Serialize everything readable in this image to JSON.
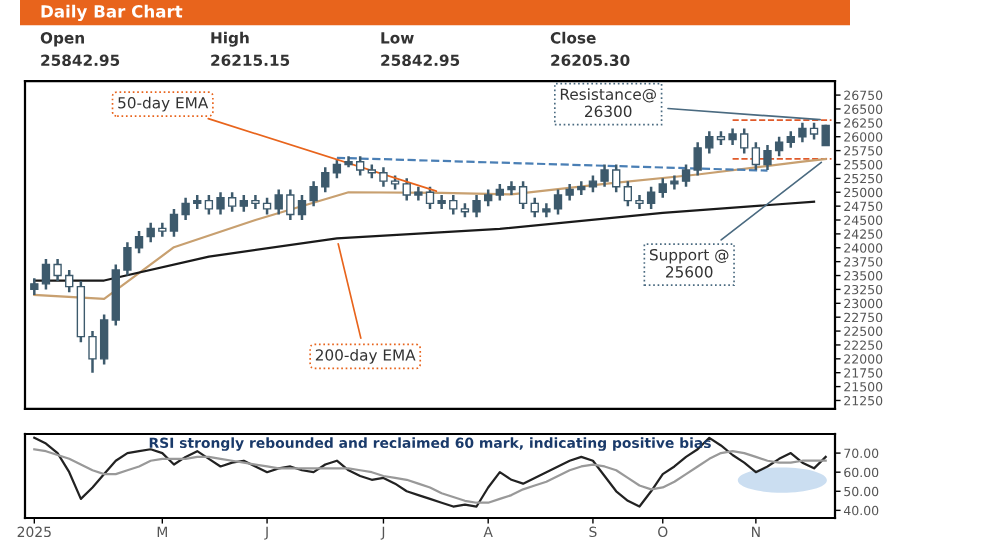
{
  "chart_data": [
    {
      "type": "candlestick",
      "title": "Daily Bar Chart",
      "categories": [
        null,
        null,
        null,
        null,
        null,
        null,
        null,
        null,
        null,
        null,
        null,
        null,
        null,
        null,
        null,
        null,
        null,
        null,
        null,
        null,
        null,
        null,
        null,
        null,
        null,
        null,
        null,
        null,
        null,
        null,
        null,
        null,
        null,
        null,
        null,
        null,
        null,
        null,
        null,
        null,
        null,
        null,
        null,
        null,
        null,
        null,
        null,
        null,
        null,
        null,
        null,
        null,
        null,
        null,
        null,
        null,
        null,
        null,
        null,
        null,
        null,
        null,
        null,
        null,
        null,
        null,
        null,
        null,
        null
      ],
      "color": "#3d5a6c",
      "ohlc": [
        [
          23250,
          23450,
          23150,
          23350
        ],
        [
          23350,
          23800,
          23250,
          23700
        ],
        [
          23700,
          23800,
          23400,
          23500
        ],
        [
          23500,
          23600,
          23200,
          23300
        ],
        [
          23300,
          23400,
          22300,
          22400
        ],
        [
          22400,
          22500,
          21750,
          22000
        ],
        [
          22000,
          22800,
          21900,
          22700
        ],
        [
          22700,
          23700,
          22600,
          23600
        ],
        [
          23600,
          24100,
          23500,
          24000
        ],
        [
          24000,
          24300,
          23900,
          24200
        ],
        [
          24200,
          24450,
          24100,
          24350
        ],
        [
          24350,
          24450,
          24200,
          24300
        ],
        [
          24300,
          24700,
          24200,
          24600
        ],
        [
          24600,
          24900,
          24500,
          24800
        ],
        [
          24800,
          24950,
          24700,
          24850
        ],
        [
          24850,
          24950,
          24600,
          24700
        ],
        [
          24700,
          25000,
          24600,
          24900
        ],
        [
          24900,
          25000,
          24650,
          24750
        ],
        [
          24750,
          24950,
          24650,
          24850
        ],
        [
          24850,
          24950,
          24700,
          24800
        ],
        [
          24800,
          24900,
          24600,
          24700
        ],
        [
          24700,
          25050,
          24600,
          24950
        ],
        [
          24950,
          25050,
          24500,
          24600
        ],
        [
          24600,
          24950,
          24500,
          24850
        ],
        [
          24850,
          25200,
          24750,
          25100
        ],
        [
          25100,
          25450,
          25000,
          25350
        ],
        [
          25350,
          25600,
          25250,
          25500
        ],
        [
          25500,
          25650,
          25450,
          25550
        ],
        [
          25550,
          25650,
          25300,
          25400
        ],
        [
          25400,
          25500,
          25250,
          25350
        ],
        [
          25350,
          25450,
          25100,
          25200
        ],
        [
          25200,
          25300,
          25050,
          25150
        ],
        [
          25150,
          25250,
          24850,
          24950
        ],
        [
          24950,
          25100,
          24850,
          25000
        ],
        [
          25000,
          25100,
          24700,
          24800
        ],
        [
          24800,
          24950,
          24700,
          24850
        ],
        [
          24850,
          24950,
          24600,
          24700
        ],
        [
          24700,
          24800,
          24550,
          24650
        ],
        [
          24650,
          24950,
          24550,
          24850
        ],
        [
          24850,
          25050,
          24750,
          24950
        ],
        [
          24950,
          25150,
          24850,
          25050
        ],
        [
          25050,
          25200,
          24950,
          25100
        ],
        [
          25100,
          25200,
          24700,
          24800
        ],
        [
          24800,
          24900,
          24550,
          24650
        ],
        [
          24650,
          24800,
          24550,
          24700
        ],
        [
          24700,
          25050,
          24600,
          24950
        ],
        [
          24950,
          25150,
          24850,
          25050
        ],
        [
          25050,
          25200,
          24950,
          25100
        ],
        [
          25100,
          25300,
          25000,
          25200
        ],
        [
          25200,
          25500,
          25100,
          25400
        ],
        [
          25400,
          25500,
          25000,
          25100
        ],
        [
          25100,
          25200,
          24750,
          24850
        ],
        [
          24850,
          24950,
          24700,
          24800
        ],
        [
          24800,
          25100,
          24700,
          25000
        ],
        [
          25000,
          25250,
          24900,
          25150
        ],
        [
          25150,
          25300,
          25050,
          25200
        ],
        [
          25200,
          25500,
          25100,
          25400
        ],
        [
          25400,
          25900,
          25300,
          25800
        ],
        [
          25800,
          26100,
          25700,
          26000
        ],
        [
          26000,
          26100,
          25850,
          25950
        ],
        [
          25950,
          26150,
          25850,
          26050
        ],
        [
          26050,
          26150,
          25700,
          25800
        ],
        [
          25800,
          25900,
          25400,
          25500
        ],
        [
          25500,
          25850,
          25400,
          25750
        ],
        [
          25750,
          26000,
          25650,
          25900
        ],
        [
          25900,
          26100,
          25800,
          26000
        ],
        [
          26000,
          26250,
          25900,
          26150
        ],
        [
          26150,
          26250,
          25950,
          26050
        ],
        [
          25842.95,
          26215.15,
          25842.95,
          26205.3
        ]
      ],
      "series": [
        {
          "name": "50-day EMA",
          "type": "line",
          "color": "#c8a070",
          "values": [
            23150,
            null,
            null,
            null,
            null,
            null,
            23080,
            null,
            null,
            null,
            null,
            null,
            24010,
            null,
            null,
            null,
            null,
            null,
            null,
            24500,
            null,
            null,
            null,
            null,
            null,
            null,
            null,
            25000,
            null,
            null,
            null,
            null,
            null,
            null,
            null,
            24990,
            null,
            null,
            null,
            null,
            null,
            24960,
            null,
            null,
            null,
            null,
            null,
            null,
            null,
            25150,
            null,
            null,
            null,
            null,
            null,
            null,
            null,
            25320,
            null,
            null,
            null,
            null,
            null,
            null,
            null,
            null,
            25550,
            null,
            25600
          ]
        },
        {
          "name": "200-day EMA",
          "type": "line",
          "color": "#1a1a1a",
          "values": [
            23410,
            null,
            null,
            null,
            null,
            null,
            23410,
            null,
            null,
            null,
            null,
            null,
            null,
            null,
            null,
            23840,
            null,
            null,
            null,
            null,
            null,
            null,
            null,
            null,
            null,
            null,
            24170,
            null,
            null,
            null,
            null,
            null,
            null,
            null,
            null,
            null,
            null,
            null,
            null,
            null,
            24340,
            null,
            null,
            null,
            null,
            null,
            null,
            null,
            null,
            null,
            null,
            null,
            null,
            null,
            24630,
            null,
            null,
            null,
            null,
            null,
            null,
            null,
            null,
            null,
            null,
            null,
            null,
            24830,
            null
          ]
        },
        {
          "type": "line",
          "color": "#4a7fb5",
          "line_style": "dashed",
          "values": [
            null,
            null,
            null,
            null,
            null,
            null,
            null,
            null,
            null,
            null,
            null,
            null,
            null,
            null,
            null,
            null,
            null,
            null,
            null,
            null,
            null,
            null,
            null,
            null,
            null,
            null,
            25620,
            null,
            null,
            null,
            null,
            null,
            null,
            null,
            null,
            null,
            null,
            null,
            null,
            null,
            null,
            null,
            null,
            null,
            null,
            null,
            null,
            null,
            null,
            null,
            null,
            null,
            null,
            null,
            null,
            null,
            null,
            null,
            null,
            null,
            null,
            null,
            null,
            25390,
            null,
            null,
            null,
            null,
            null
          ]
        }
      ],
      "ref_lines": [
        {
          "axis": "y",
          "value": 26300,
          "label": "Resistance@\n26300",
          "color": "#e05a2a",
          "line_style": "dashed"
        },
        {
          "axis": "y",
          "value": 25600,
          "label": "Support @\n25600",
          "color": "#e05a2a",
          "line_style": "dashed"
        }
      ],
      "annotations": [
        "Open",
        "High",
        "Low",
        "Close",
        "25842.95",
        "26215.15",
        "25842.95",
        "26205.30"
      ],
      "ylim": [
        21100,
        27000
      ],
      "yticks": [
        21250,
        21500,
        21750,
        22000,
        22250,
        22500,
        22750,
        23000,
        23250,
        23500,
        23750,
        24000,
        24250,
        24500,
        24750,
        25000,
        25250,
        25500,
        25750,
        26000,
        26250,
        26500,
        26750
      ],
      "tick_labels": "y",
      "grid": false,
      "legend": false
    },
    {
      "type": "line",
      "categories": [
        "2025",
        null,
        null,
        null,
        null,
        null,
        null,
        null,
        null,
        null,
        null,
        "M",
        null,
        null,
        null,
        null,
        null,
        null,
        null,
        null,
        "J",
        null,
        null,
        null,
        null,
        null,
        null,
        null,
        null,
        null,
        "J",
        null,
        null,
        null,
        null,
        null,
        null,
        null,
        null,
        "A",
        null,
        null,
        null,
        null,
        null,
        null,
        null,
        null,
        "S",
        null,
        null,
        null,
        null,
        null,
        "O",
        null,
        null,
        null,
        null,
        null,
        null,
        null,
        "N",
        null,
        null,
        null,
        null,
        null,
        null
      ],
      "series": [
        {
          "color": "#222222",
          "values": [
            78,
            75,
            70,
            60,
            46,
            52,
            59,
            66,
            70,
            71,
            72,
            70,
            64,
            68,
            71,
            67,
            63,
            65,
            66,
            63,
            60,
            62,
            63,
            61,
            60,
            64,
            66,
            61,
            58,
            56,
            57,
            54,
            50,
            48,
            46,
            44,
            42,
            43,
            42,
            52,
            60,
            56,
            54,
            57,
            60,
            63,
            66,
            68,
            66,
            58,
            50,
            45,
            42,
            50,
            59,
            63,
            68,
            72,
            78,
            74,
            69,
            65,
            60,
            63,
            67,
            70,
            65,
            62,
            68
          ]
        },
        {
          "color": "#999999",
          "values": [
            72,
            71,
            69,
            67,
            64,
            61,
            59,
            59,
            61,
            63,
            66,
            67,
            67,
            67,
            68,
            68,
            67,
            66,
            65,
            64,
            63,
            62,
            62,
            62,
            62,
            62,
            62,
            62,
            61,
            60,
            58,
            57,
            56,
            54,
            52,
            49,
            47,
            45,
            44,
            44,
            46,
            48,
            51,
            53,
            55,
            58,
            61,
            63,
            64,
            63,
            61,
            57,
            53,
            51,
            52,
            55,
            59,
            63,
            67,
            70,
            71,
            70,
            68,
            66,
            65,
            65,
            66,
            66,
            66
          ]
        }
      ],
      "annotations": [
        "RSI strongly rebounded and reclaimed 60 mark, indicating positive bias"
      ],
      "ylim": [
        36,
        80
      ],
      "yticks": [
        {
          "value": 40,
          "label": "40.00"
        },
        {
          "value": 50,
          "label": "50.00"
        },
        {
          "value": 60,
          "label": "60.00"
        },
        {
          "value": 70,
          "label": "70.00"
        }
      ],
      "grid": false,
      "legend": false
    }
  ]
}
